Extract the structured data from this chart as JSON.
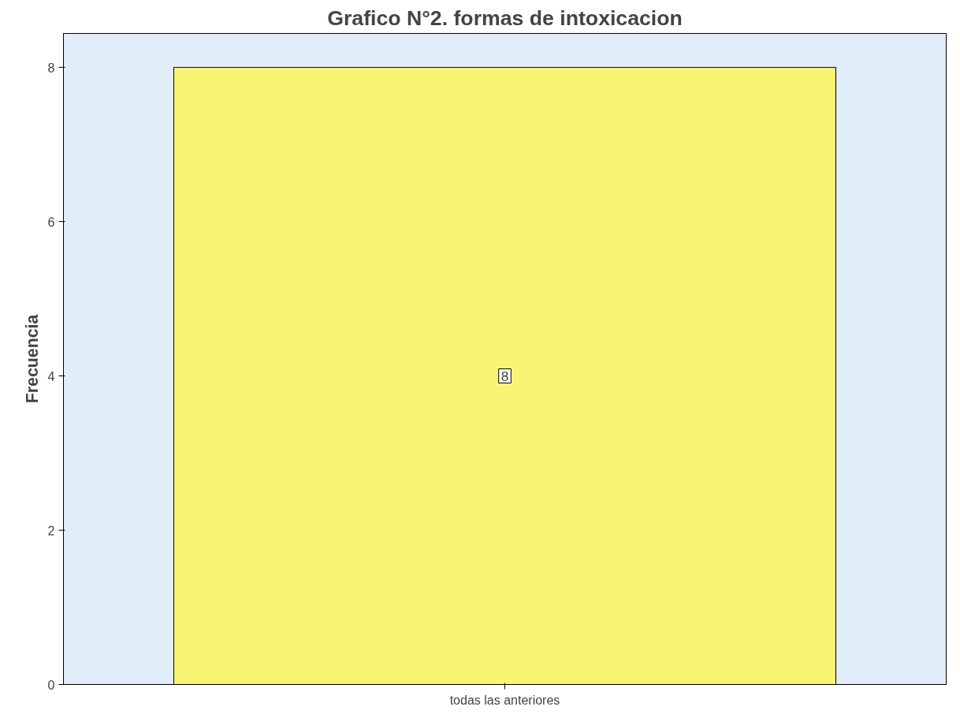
{
  "chart_data": {
    "type": "bar",
    "title": "Grafico N°2. formas de intoxicacion",
    "ylabel": "Frecuencia",
    "categories": [
      "todas las anteriores"
    ],
    "values": [
      8
    ],
    "color": "#f8f574",
    "ylim": [
      0,
      8.44
    ],
    "yticks": [
      0,
      2,
      4,
      6,
      8
    ],
    "grid": false,
    "data_labels": true
  }
}
